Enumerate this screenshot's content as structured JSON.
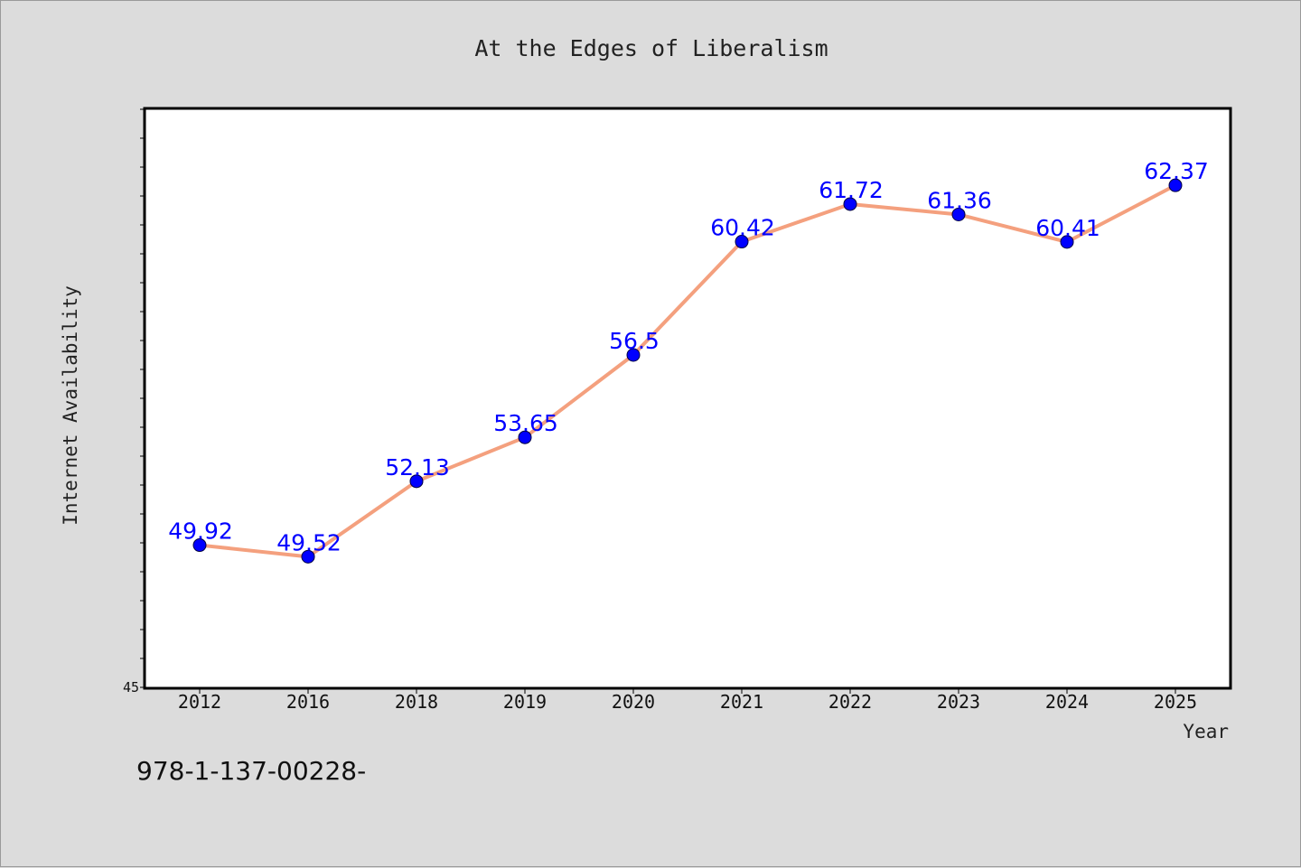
{
  "chart_data": {
    "type": "line",
    "title": "At the Edges of Liberalism",
    "xlabel": "Year",
    "ylabel": "Internet Availability",
    "categories": [
      "2012",
      "2016",
      "2018",
      "2019",
      "2020",
      "2021",
      "2022",
      "2023",
      "2024",
      "2025"
    ],
    "series": [
      {
        "values": [
          49.92,
          49.52,
          52.13,
          53.65,
          56.5,
          60.42,
          61.72,
          61.36,
          60.41,
          62.37
        ],
        "labels": [
          "49.92",
          "49.52",
          "52.13",
          "53.65",
          "56.5",
          "60.42",
          "61.72",
          "61.36",
          "60.41",
          "62.37"
        ]
      }
    ],
    "ylim": [
      45,
      65
    ],
    "ytick_labels": [
      "45"
    ],
    "grid": false,
    "line_color": "#f4a07e",
    "marker_color": "#0000ff",
    "label_color": "#0000ff"
  },
  "footer_text": "978-1-137-00228-"
}
